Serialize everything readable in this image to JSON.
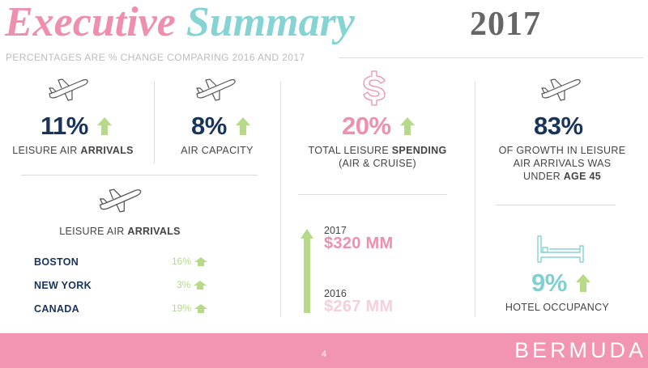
{
  "header": {
    "title_word1": "Executive",
    "title_word2": "Summary",
    "year": "2017",
    "subtitle": "PERCENTAGES ARE % CHANGE COMPARING 2016 AND 2017"
  },
  "stats": {
    "leisure_arrivals": {
      "value": "11%",
      "label_plain": "LEISURE AIR ",
      "label_bold": "ARRIVALS",
      "icon": "airplane-icon",
      "trend": "up"
    },
    "air_capacity": {
      "value": "8%",
      "label": "AIR CAPACITY",
      "icon": "airplane-icon",
      "trend": "up"
    },
    "leisure_spending": {
      "value": "20%",
      "label_plain": "TOTAL LEISURE ",
      "label_bold": "SPENDING",
      "label_line2": "(AIR & CRUISE)",
      "icon": "dollar-icon",
      "trend": "up"
    },
    "growth_under_45": {
      "value": "83%",
      "label_line1": "OF GROWTH IN LEISURE",
      "label_line2": "AIR ARRIVALS WAS",
      "label_line3_plain": "UNDER ",
      "label_line3_bold": "AGE 45",
      "icon": "airplane-icon"
    }
  },
  "arrivals_by_market": {
    "title_plain": "LEISURE AIR ",
    "title_bold": "ARRIVALS",
    "icon": "airplane-icon",
    "rows": [
      {
        "city": "BOSTON",
        "value": "16%",
        "trend": "up"
      },
      {
        "city": "NEW YORK",
        "value": "3%",
        "trend": "up"
      },
      {
        "city": "CANADA",
        "value": "19%",
        "trend": "up"
      }
    ]
  },
  "spending": {
    "year_2017": "2017",
    "value_2017": "$320 MM",
    "year_2016": "2016",
    "value_2016": "$267 MM"
  },
  "hotel": {
    "value": "9%",
    "label": "HOTEL OCCUPANCY",
    "icon": "bed-icon",
    "trend": "up"
  },
  "footer": {
    "page_number": "4",
    "brand": "BERMUDA"
  },
  "colors": {
    "pink": "#ee8fae",
    "teal": "#86d3d4",
    "navy": "#18345a",
    "green": "#b6d98a",
    "footer": "#f195b1"
  }
}
